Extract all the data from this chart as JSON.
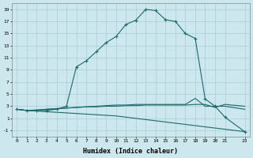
{
  "xlabel": "Humidex (Indice chaleur)",
  "ylabel": "",
  "background_color": "#cce8ee",
  "grid_color": "#aacdd5",
  "line_color": "#1a6b6b",
  "xlim": [
    -0.5,
    23.5
  ],
  "ylim": [
    -2,
    20
  ],
  "xticks": [
    0,
    1,
    2,
    3,
    4,
    5,
    6,
    7,
    8,
    9,
    10,
    11,
    12,
    13,
    14,
    15,
    16,
    17,
    18,
    19,
    20,
    21,
    23
  ],
  "yticks": [
    -1,
    1,
    3,
    5,
    7,
    9,
    11,
    13,
    15,
    17,
    19
  ],
  "series1_x": [
    0,
    1,
    2,
    3,
    4,
    5,
    6,
    7,
    8,
    9,
    10,
    11,
    12,
    13,
    14,
    15,
    16,
    17,
    18,
    19,
    20,
    21,
    23
  ],
  "series1_y": [
    2.5,
    2.3,
    2.3,
    2.3,
    2.5,
    3.0,
    9.5,
    10.5,
    12.0,
    13.5,
    14.5,
    16.5,
    17.2,
    19.0,
    18.8,
    17.3,
    17.0,
    15.0,
    14.2,
    4.2,
    3.0,
    1.2,
    -1.2
  ],
  "series2_x": [
    0,
    1,
    2,
    3,
    4,
    5,
    6,
    7,
    8,
    9,
    10,
    11,
    12,
    13,
    14,
    15,
    16,
    17,
    18,
    19,
    20,
    21,
    23
  ],
  "series2_y": [
    2.5,
    2.3,
    2.3,
    2.5,
    2.6,
    2.7,
    2.8,
    2.9,
    3.0,
    3.1,
    3.2,
    3.2,
    3.3,
    3.3,
    3.3,
    3.3,
    3.3,
    3.3,
    4.3,
    3.0,
    3.0,
    3.0,
    2.5
  ],
  "series3_x": [
    0,
    1,
    2,
    3,
    4,
    5,
    6,
    7,
    8,
    9,
    10,
    11,
    12,
    13,
    14,
    15,
    16,
    17,
    18,
    19,
    20,
    21,
    23
  ],
  "series3_y": [
    2.5,
    2.3,
    2.4,
    2.5,
    2.6,
    2.7,
    2.8,
    2.9,
    2.9,
    3.0,
    3.0,
    3.1,
    3.1,
    3.2,
    3.2,
    3.2,
    3.2,
    3.2,
    3.3,
    3.3,
    2.8,
    3.3,
    3.0
  ],
  "series4_x": [
    0,
    1,
    2,
    3,
    4,
    5,
    6,
    7,
    8,
    9,
    10,
    11,
    12,
    13,
    14,
    15,
    16,
    17,
    18,
    19,
    20,
    21,
    23
  ],
  "series4_y": [
    2.5,
    2.3,
    2.2,
    2.1,
    2.0,
    1.9,
    1.8,
    1.7,
    1.6,
    1.5,
    1.4,
    1.2,
    1.0,
    0.8,
    0.6,
    0.4,
    0.2,
    0.0,
    -0.2,
    -0.4,
    -0.6,
    -0.8,
    -1.2
  ]
}
